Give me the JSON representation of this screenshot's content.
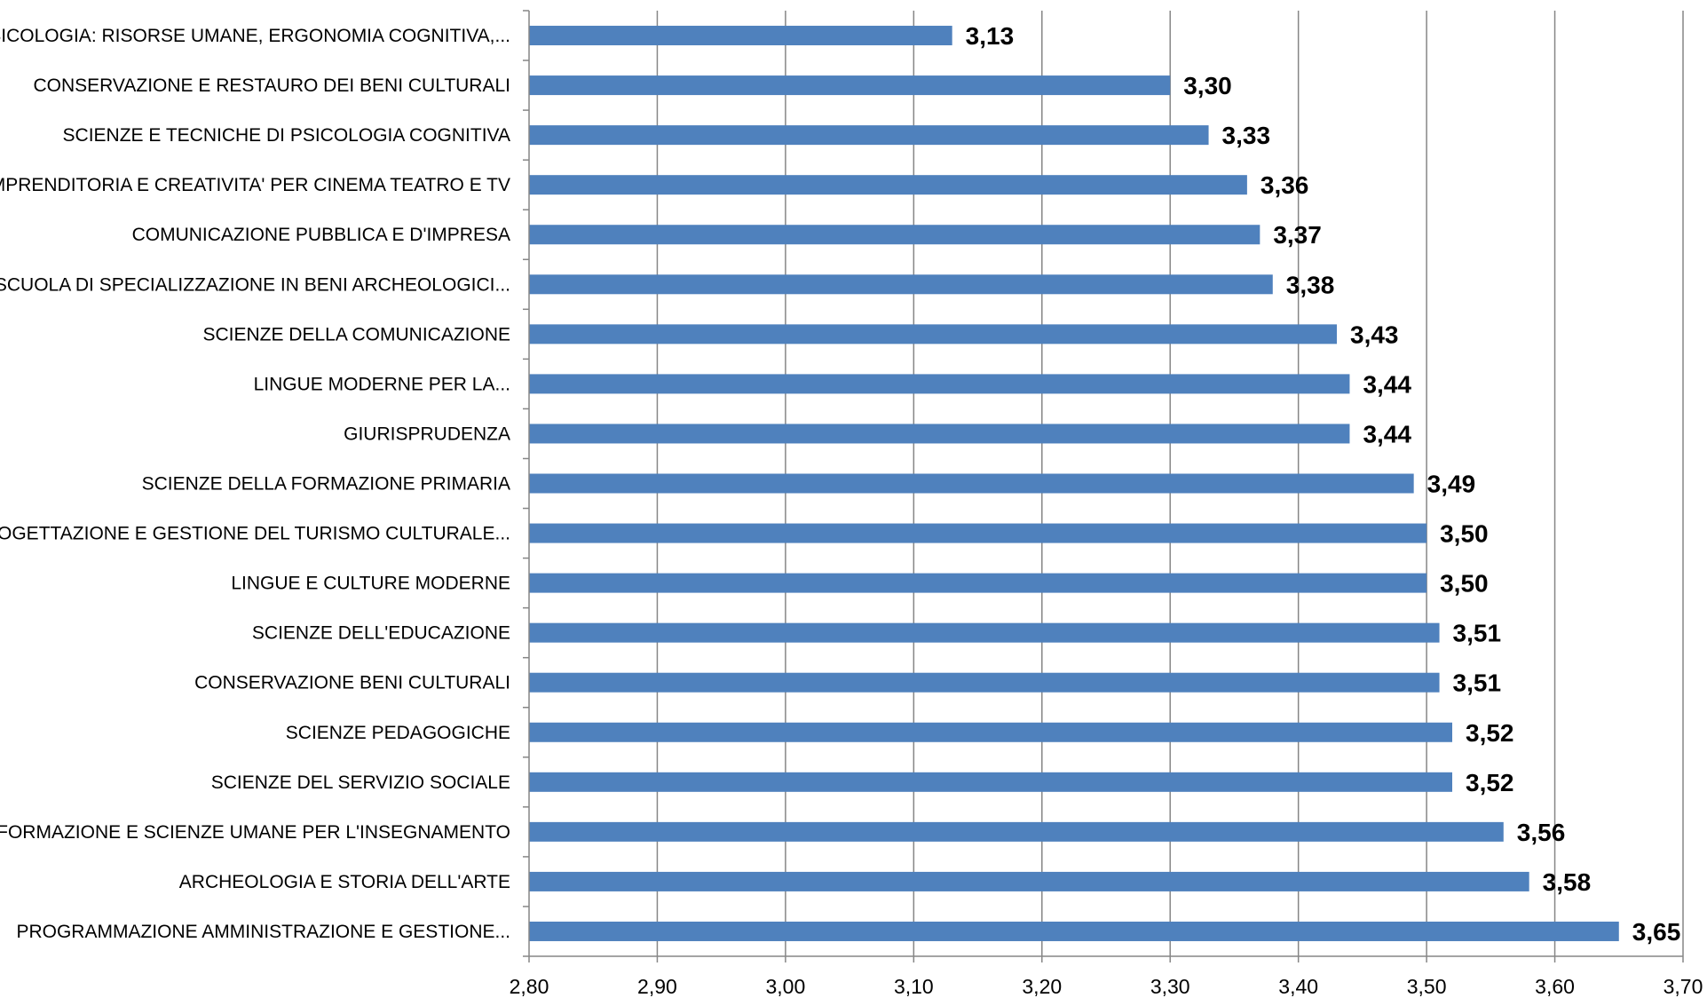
{
  "chart_data": {
    "type": "bar",
    "orientation": "horizontal",
    "categories": [
      "PSICOLOGIA: RISORSE UMANE, ERGONOMIA COGNITIVA,...",
      "CONSERVAZIONE E RESTAURO DEI BENI CULTURALI",
      "SCIENZE E TECNICHE DI PSICOLOGIA COGNITIVA",
      "IMPRENDITORIA E CREATIVITA' PER CINEMA TEATRO E TV",
      "COMUNICAZIONE PUBBLICA E D'IMPRESA",
      "SCUOLA DI SPECIALIZZAZIONE IN BENI ARCHEOLOGICI...",
      "SCIENZE DELLA COMUNICAZIONE",
      "LINGUE MODERNE PER LA...",
      "GIURISPRUDENZA",
      "SCIENZE DELLA FORMAZIONE PRIMARIA",
      "PROGETTAZIONE E GESTIONE DEL TURISMO CULTURALE...",
      "LINGUE E CULTURE MODERNE",
      "SCIENZE DELL'EDUCAZIONE",
      "CONSERVAZIONE BENI CULTURALI",
      "SCIENZE PEDAGOGICHE",
      "SCIENZE DEL SERVIZIO SOCIALE",
      "FORMAZIONE E SCIENZE UMANE PER L'INSEGNAMENTO",
      "ARCHEOLOGIA E STORIA DELL'ARTE",
      "PROGRAMMAZIONE AMMINISTRAZIONE E GESTIONE..."
    ],
    "values": [
      3.13,
      3.3,
      3.33,
      3.36,
      3.37,
      3.38,
      3.43,
      3.44,
      3.44,
      3.49,
      3.5,
      3.5,
      3.51,
      3.51,
      3.52,
      3.52,
      3.56,
      3.58,
      3.65
    ],
    "data_labels": [
      "3,13",
      "3,30",
      "3,33",
      "3,36",
      "3,37",
      "3,38",
      "3,43",
      "3,44",
      "3,44",
      "3,49",
      "3,50",
      "3,50",
      "3,51",
      "3,51",
      "3,52",
      "3,52",
      "3,56",
      "3,58",
      "3,65"
    ],
    "xlim": [
      2.8,
      3.7
    ],
    "x_ticks": [
      2.8,
      2.9,
      3.0,
      3.1,
      3.2,
      3.3,
      3.4,
      3.5,
      3.6,
      3.7
    ],
    "x_tick_labels": [
      "2,80",
      "2,90",
      "3,00",
      "3,10",
      "3,20",
      "3,30",
      "3,40",
      "3,50",
      "3,60",
      "3,70"
    ],
    "title": "",
    "xlabel": "",
    "ylabel": "",
    "grid": "vertical",
    "legend": "none",
    "bar_color": "#4F81BD",
    "grid_color": "#868686",
    "axis_color": "#868686"
  }
}
